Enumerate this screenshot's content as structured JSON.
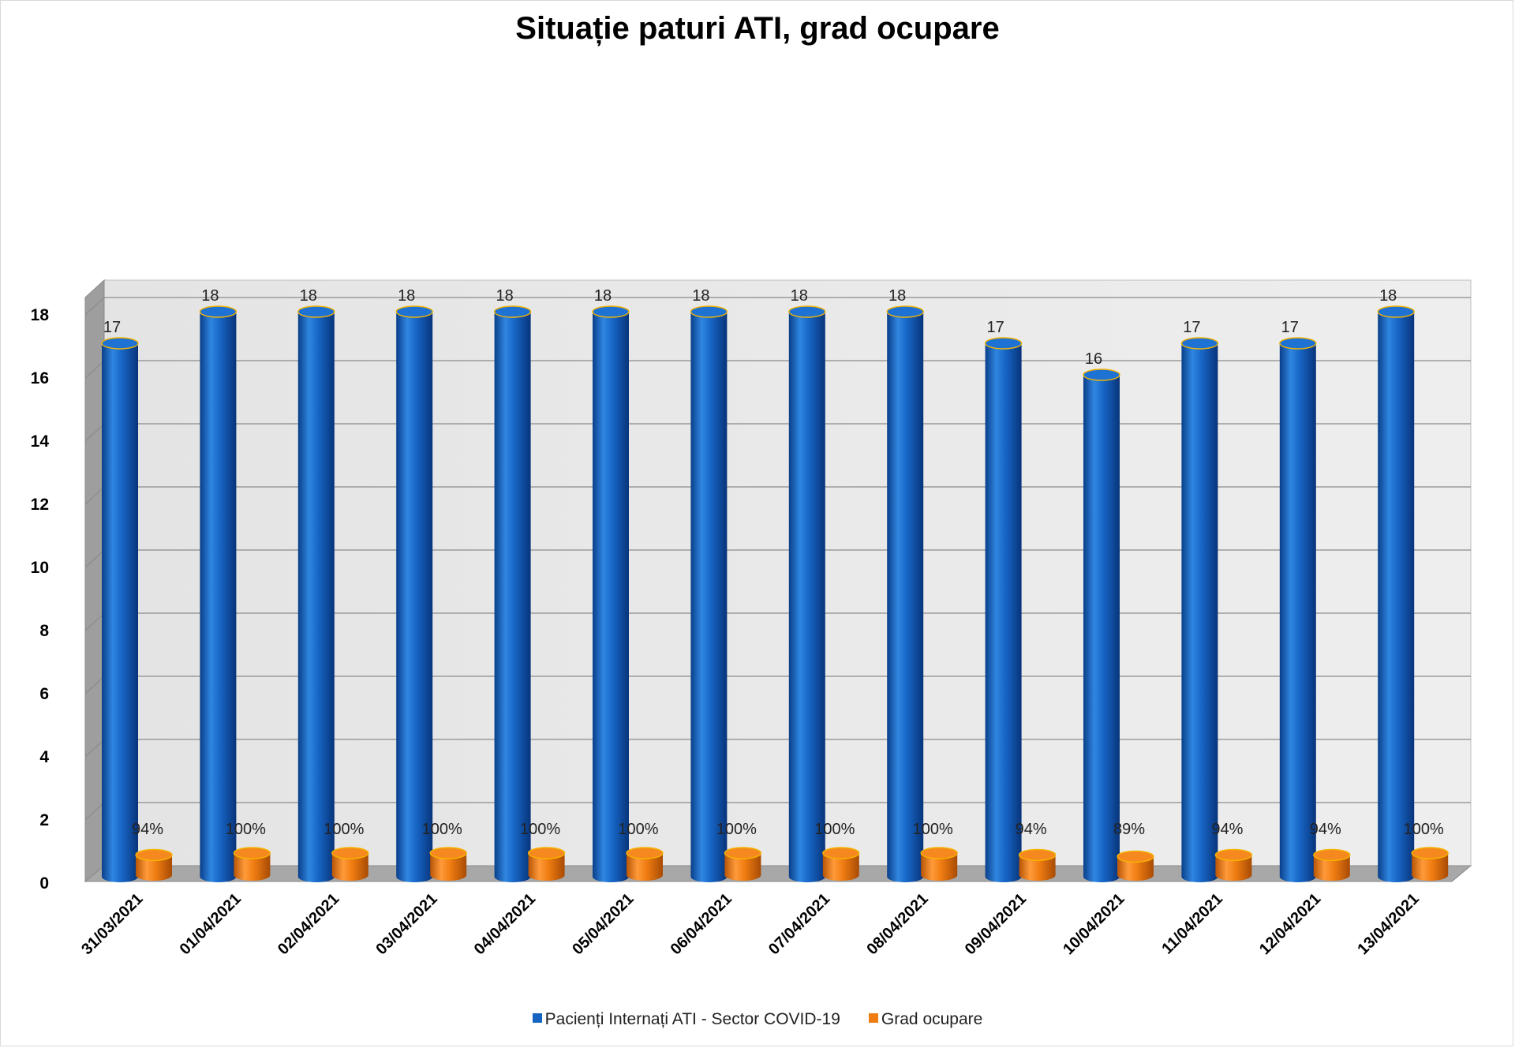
{
  "chart_data": {
    "type": "bar",
    "title": "Situație paturi ATI, grad ocupare",
    "categories": [
      "31/03/2021",
      "01/04/2021",
      "02/04/2021",
      "03/04/2021",
      "04/04/2021",
      "05/04/2021",
      "06/04/2021",
      "07/04/2021",
      "08/04/2021",
      "09/04/2021",
      "10/04/2021",
      "11/04/2021",
      "12/04/2021",
      "13/04/2021"
    ],
    "series": [
      {
        "name": "Pacienți Internați ATI - Sector COVID-19",
        "values": [
          17,
          18,
          18,
          18,
          18,
          18,
          18,
          18,
          18,
          17,
          16,
          17,
          17,
          18
        ],
        "labels": [
          "17",
          "18",
          "18",
          "18",
          "18",
          "18",
          "18",
          "18",
          "18",
          "17",
          "16",
          "17",
          "17",
          "18"
        ],
        "color": "#1565c0"
      },
      {
        "name": "Grad ocupare",
        "values": [
          0.94,
          1.0,
          1.0,
          1.0,
          1.0,
          1.0,
          1.0,
          1.0,
          1.0,
          0.94,
          0.89,
          0.94,
          0.94,
          1.0
        ],
        "labels": [
          "94%",
          "100%",
          "100%",
          "100%",
          "100%",
          "100%",
          "100%",
          "100%",
          "100%",
          "94%",
          "89%",
          "94%",
          "94%",
          "100%"
        ],
        "color": "#f07d12"
      }
    ],
    "yticks": [
      "0",
      "2",
      "4",
      "6",
      "8",
      "10",
      "12",
      "14",
      "16",
      "18"
    ],
    "ylim": [
      0,
      18
    ],
    "grid": true,
    "legend_position": "bottom",
    "style": "3d-cylinder"
  }
}
